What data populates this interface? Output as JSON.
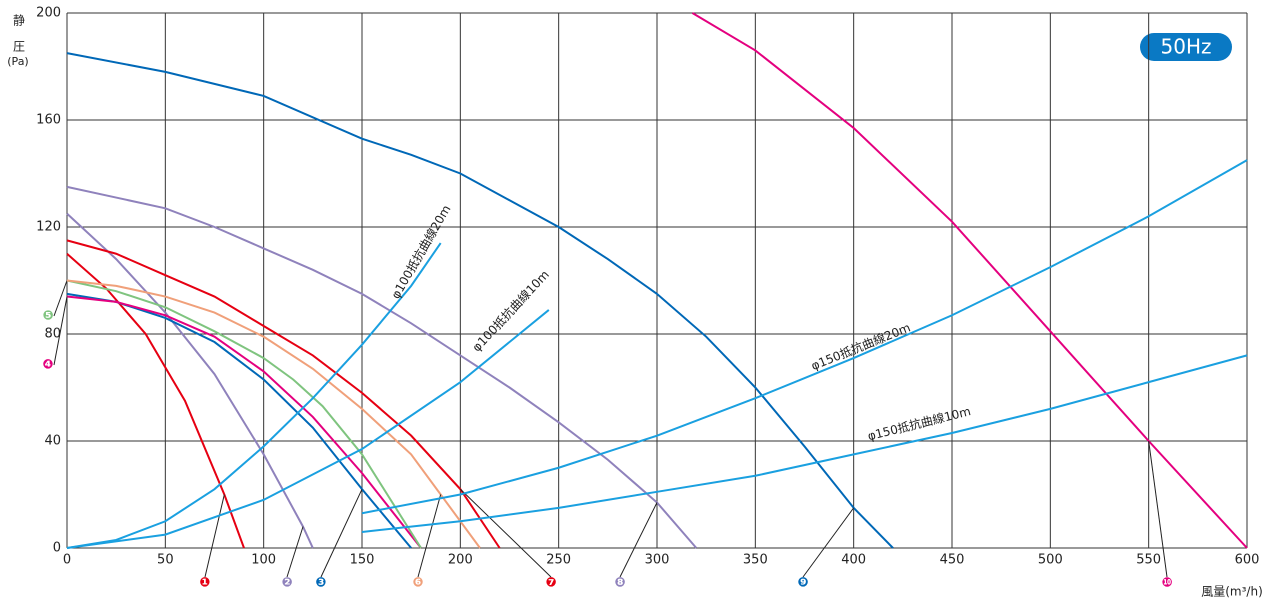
{
  "chart_data": {
    "type": "line",
    "y_label": "静圧",
    "y_unit": "(Pa)",
    "x_label": "風量(m³/h)",
    "badge": "50Hz",
    "xlim": [
      0,
      600
    ],
    "ylim": [
      0,
      200
    ],
    "xticks": [
      0,
      50,
      100,
      150,
      200,
      250,
      300,
      350,
      400,
      450,
      500,
      550,
      600
    ],
    "yticks": [
      0,
      40,
      80,
      120,
      160,
      200
    ],
    "grid": true,
    "series": [
      {
        "name": "❶",
        "color": "#e60012",
        "x": [
          0,
          20,
          40,
          60,
          80,
          90
        ],
        "values": [
          110,
          97,
          80,
          55,
          20,
          0
        ]
      },
      {
        "name": "❷",
        "color": "#8f82bc",
        "x": [
          0,
          25,
          50,
          75,
          100,
          120,
          125
        ],
        "values": [
          125,
          108,
          88,
          65,
          35,
          8,
          0
        ]
      },
      {
        "name": "❸",
        "color": "#0068b7",
        "x": [
          0,
          25,
          50,
          75,
          100,
          125,
          150,
          175
        ],
        "values": [
          95,
          92,
          86,
          77,
          63,
          45,
          22,
          0
        ]
      },
      {
        "name": "❹",
        "color": "#e4007f",
        "x": [
          0,
          25,
          50,
          75,
          100,
          125,
          150,
          180
        ],
        "values": [
          94,
          92,
          87,
          79,
          66,
          49,
          28,
          0
        ]
      },
      {
        "name": "❺",
        "color": "#7fc47f",
        "x": [
          0,
          25,
          50,
          75,
          100,
          115,
          130,
          150,
          180
        ],
        "values": [
          100,
          96,
          90,
          81,
          71,
          63,
          53,
          35,
          0
        ]
      },
      {
        "name": "❻",
        "color": "#f0a07a",
        "x": [
          0,
          25,
          50,
          75,
          100,
          125,
          150,
          175,
          190,
          210
        ],
        "values": [
          100,
          98,
          94,
          88,
          79,
          67,
          52,
          35,
          20,
          0
        ]
      },
      {
        "name": "❼",
        "color": "#e60012",
        "x": [
          0,
          25,
          50,
          75,
          100,
          125,
          150,
          175,
          200,
          220
        ],
        "values": [
          115,
          110,
          102,
          94,
          83,
          72,
          58,
          42,
          22,
          0
        ]
      },
      {
        "name": "❽",
        "color": "#8f82bc",
        "x": [
          0,
          25,
          50,
          75,
          100,
          125,
          150,
          175,
          200,
          225,
          250,
          275,
          300,
          320
        ],
        "values": [
          135,
          131,
          127,
          120,
          112,
          104,
          95,
          84,
          72,
          60,
          47,
          33,
          17,
          0
        ]
      },
      {
        "name": "❾",
        "color": "#0068b7",
        "x": [
          0,
          50,
          100,
          150,
          175,
          200,
          225,
          250,
          275,
          300,
          325,
          350,
          375,
          400,
          420
        ],
        "values": [
          185,
          178,
          169,
          153,
          147,
          140,
          130,
          120,
          108,
          95,
          79,
          60,
          38,
          15,
          0
        ]
      },
      {
        "name": "❿",
        "color": "#e4007f",
        "x": [
          318,
          350,
          400,
          450,
          500,
          550,
          600
        ],
        "values": [
          200,
          186,
          157,
          122,
          81,
          40,
          0
        ]
      },
      {
        "name": "φ100抵抗曲線20m",
        "color": "#1aa0e0",
        "x": [
          0,
          25,
          50,
          75,
          100,
          125,
          150,
          175,
          190
        ],
        "values": [
          0,
          3,
          10,
          22,
          38,
          56,
          76,
          98,
          114
        ]
      },
      {
        "name": "φ100抵抗曲線10m",
        "color": "#1aa0e0",
        "x": [
          0,
          50,
          100,
          150,
          200,
          245
        ],
        "values": [
          0,
          5,
          18,
          37,
          62,
          89
        ]
      },
      {
        "name": "φ150抵抗曲線20m",
        "color": "#1aa0e0",
        "x": [
          150,
          200,
          250,
          300,
          350,
          400,
          450,
          500,
          550,
          600
        ],
        "values": [
          13,
          20,
          30,
          42,
          56,
          71,
          87,
          105,
          124,
          145
        ]
      },
      {
        "name": "φ150抵抗曲線10m",
        "color": "#1aa0e0",
        "x": [
          150,
          200,
          250,
          300,
          350,
          400,
          450,
          500,
          550,
          600
        ],
        "values": [
          6,
          10,
          15,
          21,
          27,
          35,
          43,
          52,
          62,
          72
        ]
      }
    ]
  }
}
